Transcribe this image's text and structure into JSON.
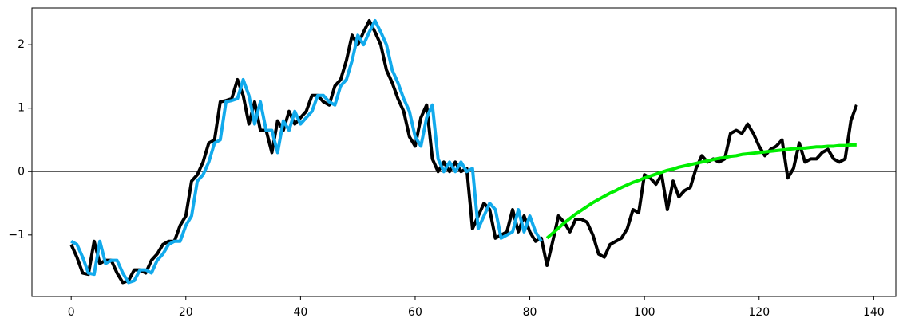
{
  "chart_data": {
    "type": "line",
    "xlim": [
      -6.85,
      143.85
    ],
    "ylim": [
      -1.97,
      2.58
    ],
    "xticks": [
      0,
      20,
      40,
      60,
      80,
      100,
      120,
      140
    ],
    "yticks": [
      {
        "value": -1,
        "label": "−1"
      },
      0,
      1,
      2
    ],
    "hlines": [
      0
    ],
    "series": [
      {
        "color": "#000000",
        "x": [
          0,
          1,
          2,
          3,
          4,
          5,
          6,
          7,
          8,
          9,
          10,
          11,
          12,
          13,
          14,
          15,
          16,
          17,
          18,
          19,
          20,
          21,
          22,
          23,
          24,
          25,
          26,
          27,
          28,
          29,
          30,
          31,
          32,
          33,
          34,
          35,
          36,
          37,
          38,
          39,
          40,
          41,
          42,
          43,
          44,
          45,
          46,
          47,
          48,
          49,
          50,
          51,
          52,
          53,
          54,
          55,
          56,
          57,
          58,
          59,
          60,
          61,
          62,
          63,
          64,
          65,
          66,
          67,
          68,
          69,
          70,
          71,
          72,
          73,
          74,
          75,
          76,
          77,
          78,
          79,
          80,
          81,
          82,
          83,
          84,
          85,
          86,
          87,
          88,
          89,
          90,
          91,
          92,
          93,
          94,
          95,
          96,
          97,
          98,
          99,
          100,
          101,
          102,
          103,
          104,
          105,
          106,
          107,
          108,
          109,
          110,
          111,
          112,
          113,
          114,
          115,
          116,
          117,
          118,
          119,
          120,
          121,
          122,
          123,
          124,
          125,
          126,
          127,
          128,
          129,
          130,
          131,
          132,
          133,
          134,
          135,
          136,
          137
        ],
        "values": [
          -1.15,
          -1.35,
          -1.6,
          -1.62,
          -1.1,
          -1.45,
          -1.4,
          -1.4,
          -1.6,
          -1.75,
          -1.72,
          -1.55,
          -1.55,
          -1.6,
          -1.4,
          -1.3,
          -1.15,
          -1.1,
          -1.1,
          -0.85,
          -0.7,
          -0.15,
          -0.05,
          0.15,
          0.45,
          0.5,
          1.1,
          1.12,
          1.15,
          1.45,
          1.2,
          0.75,
          1.1,
          0.65,
          0.65,
          0.3,
          0.8,
          0.65,
          0.95,
          0.75,
          0.85,
          0.95,
          1.2,
          1.2,
          1.1,
          1.05,
          1.35,
          1.45,
          1.75,
          2.15,
          2.0,
          2.2,
          2.38,
          2.2,
          2.0,
          1.6,
          1.4,
          1.15,
          0.95,
          0.55,
          0.4,
          0.85,
          1.05,
          0.2,
          0.0,
          0.15,
          0.0,
          0.15,
          0.0,
          0.05,
          -0.9,
          -0.7,
          -0.5,
          -0.6,
          -1.05,
          -1.0,
          -0.95,
          -0.6,
          -0.95,
          -0.7,
          -0.95,
          -1.1,
          -1.05,
          -1.48,
          -1.1,
          -0.7,
          -0.8,
          -0.95,
          -0.75,
          -0.75,
          -0.8,
          -1.0,
          -1.3,
          -1.35,
          -1.15,
          -1.1,
          -1.05,
          -0.9,
          -0.6,
          -0.65,
          -0.05,
          -0.1,
          -0.2,
          -0.05,
          -0.6,
          -0.15,
          -0.4,
          -0.3,
          -0.25,
          0.05,
          0.25,
          0.15,
          0.2,
          0.15,
          0.2,
          0.6,
          0.65,
          0.6,
          0.75,
          0.6,
          0.4,
          0.25,
          0.35,
          0.4,
          0.5,
          -0.1,
          0.05,
          0.45,
          0.15,
          0.2,
          0.2,
          0.3,
          0.35,
          0.2,
          0.15,
          0.2,
          0.8,
          1.05
        ]
      },
      {
        "color": "#12aaec",
        "x": [
          0,
          1,
          2,
          3,
          4,
          5,
          6,
          7,
          8,
          9,
          10,
          11,
          12,
          13,
          14,
          15,
          16,
          17,
          18,
          19,
          20,
          21,
          22,
          23,
          24,
          25,
          26,
          27,
          28,
          29,
          30,
          31,
          32,
          33,
          34,
          35,
          36,
          37,
          38,
          39,
          40,
          41,
          42,
          43,
          44,
          45,
          46,
          47,
          48,
          49,
          50,
          51,
          52,
          53,
          54,
          55,
          56,
          57,
          58,
          59,
          60,
          61,
          62,
          63,
          64,
          65,
          66,
          67,
          68,
          69,
          70,
          71,
          72,
          73,
          74,
          75,
          76,
          77,
          78,
          79,
          80,
          81,
          82
        ],
        "values": [
          -1.1,
          -1.15,
          -1.35,
          -1.6,
          -1.62,
          -1.1,
          -1.45,
          -1.4,
          -1.4,
          -1.6,
          -1.75,
          -1.72,
          -1.55,
          -1.55,
          -1.6,
          -1.4,
          -1.3,
          -1.15,
          -1.1,
          -1.1,
          -0.85,
          -0.7,
          -0.15,
          -0.05,
          0.15,
          0.45,
          0.5,
          1.1,
          1.12,
          1.15,
          1.45,
          1.2,
          0.75,
          1.1,
          0.65,
          0.65,
          0.3,
          0.8,
          0.65,
          0.95,
          0.75,
          0.85,
          0.95,
          1.2,
          1.2,
          1.1,
          1.05,
          1.35,
          1.45,
          1.75,
          2.15,
          2.0,
          2.2,
          2.38,
          2.2,
          2.0,
          1.6,
          1.4,
          1.15,
          0.95,
          0.55,
          0.4,
          0.85,
          1.05,
          0.2,
          0.0,
          0.15,
          0.0,
          0.15,
          0.0,
          0.05,
          -0.9,
          -0.7,
          -0.5,
          -0.6,
          -1.05,
          -1.0,
          -0.95,
          -0.6,
          -0.95,
          -0.7,
          -0.95,
          -1.1
        ]
      },
      {
        "color": "#00ee00",
        "x": [
          83,
          84,
          85,
          86,
          87,
          88,
          89,
          90,
          91,
          92,
          93,
          94,
          95,
          96,
          97,
          98,
          99,
          100,
          101,
          102,
          103,
          104,
          105,
          106,
          107,
          108,
          109,
          110,
          111,
          112,
          113,
          114,
          115,
          116,
          117,
          118,
          119,
          120,
          121,
          122,
          123,
          124,
          125,
          126,
          127,
          128,
          129,
          130,
          131,
          132,
          133,
          134,
          135,
          136,
          137
        ],
        "values": [
          -1.05,
          -0.97,
          -0.89,
          -0.81,
          -0.74,
          -0.67,
          -0.61,
          -0.55,
          -0.49,
          -0.44,
          -0.39,
          -0.34,
          -0.3,
          -0.25,
          -0.21,
          -0.17,
          -0.14,
          -0.1,
          -0.07,
          -0.04,
          -0.01,
          0.02,
          0.04,
          0.07,
          0.09,
          0.11,
          0.13,
          0.15,
          0.17,
          0.19,
          0.21,
          0.22,
          0.24,
          0.25,
          0.27,
          0.28,
          0.29,
          0.3,
          0.31,
          0.32,
          0.33,
          0.34,
          0.35,
          0.36,
          0.37,
          0.37,
          0.38,
          0.39,
          0.39,
          0.4,
          0.4,
          0.41,
          0.41,
          0.42,
          0.42
        ]
      }
    ]
  }
}
